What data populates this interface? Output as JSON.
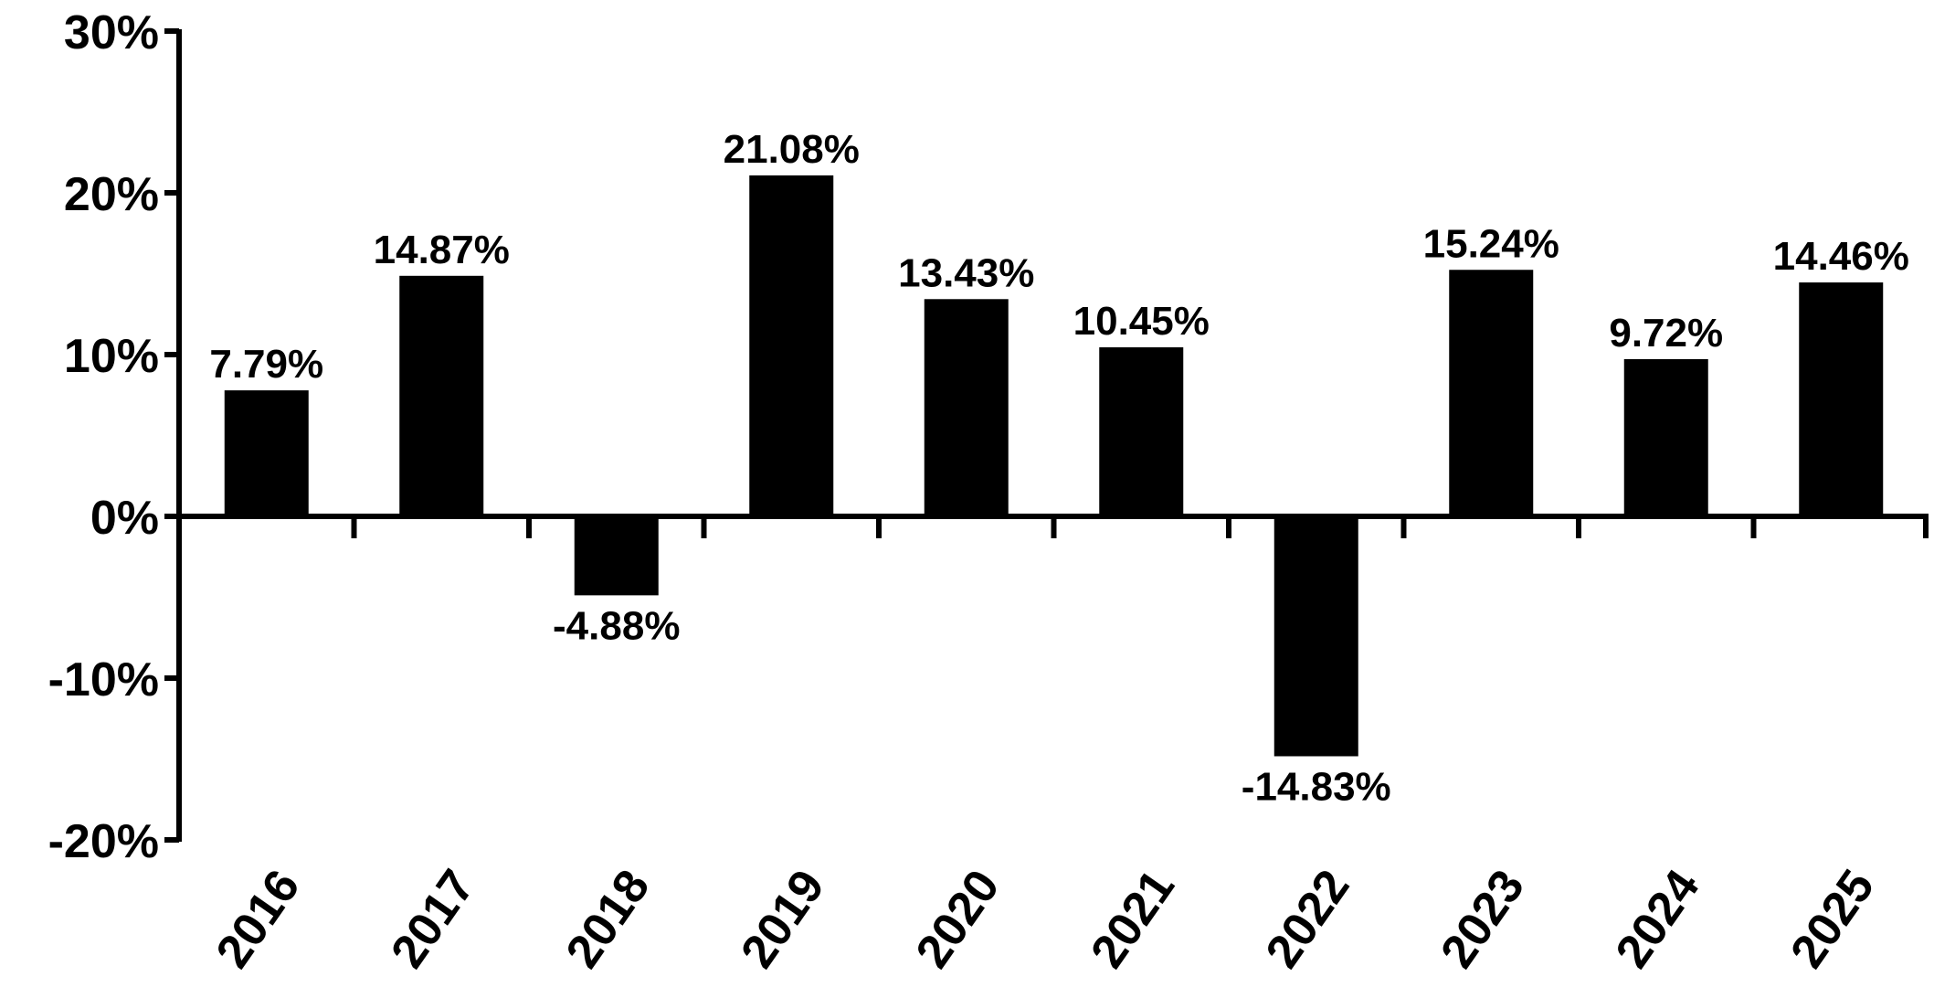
{
  "chart_data": {
    "type": "bar",
    "title": "",
    "xlabel": "",
    "ylabel": "",
    "categories": [
      "2016",
      "2017",
      "2018",
      "2019",
      "2020",
      "2021",
      "2022",
      "2023",
      "2024",
      "2025"
    ],
    "values": [
      7.79,
      14.87,
      -4.88,
      21.08,
      13.43,
      10.45,
      -14.83,
      15.24,
      9.72,
      14.46
    ],
    "data_labels": [
      "7.79%",
      "14.87%",
      "-4.88%",
      "21.08%",
      "13.43%",
      "10.45%",
      "-14.83%",
      "15.24%",
      "9.72%",
      "14.46%"
    ],
    "ylim": [
      -20,
      30
    ],
    "yticks": [
      30,
      20,
      10,
      0,
      -10,
      -20
    ],
    "ytick_labels": [
      "30%",
      "20%",
      "10%",
      "0%",
      "-10%",
      "-20%"
    ],
    "grid": false,
    "legend": "none",
    "bar_color": "#000000",
    "axis_color": "#000000"
  }
}
